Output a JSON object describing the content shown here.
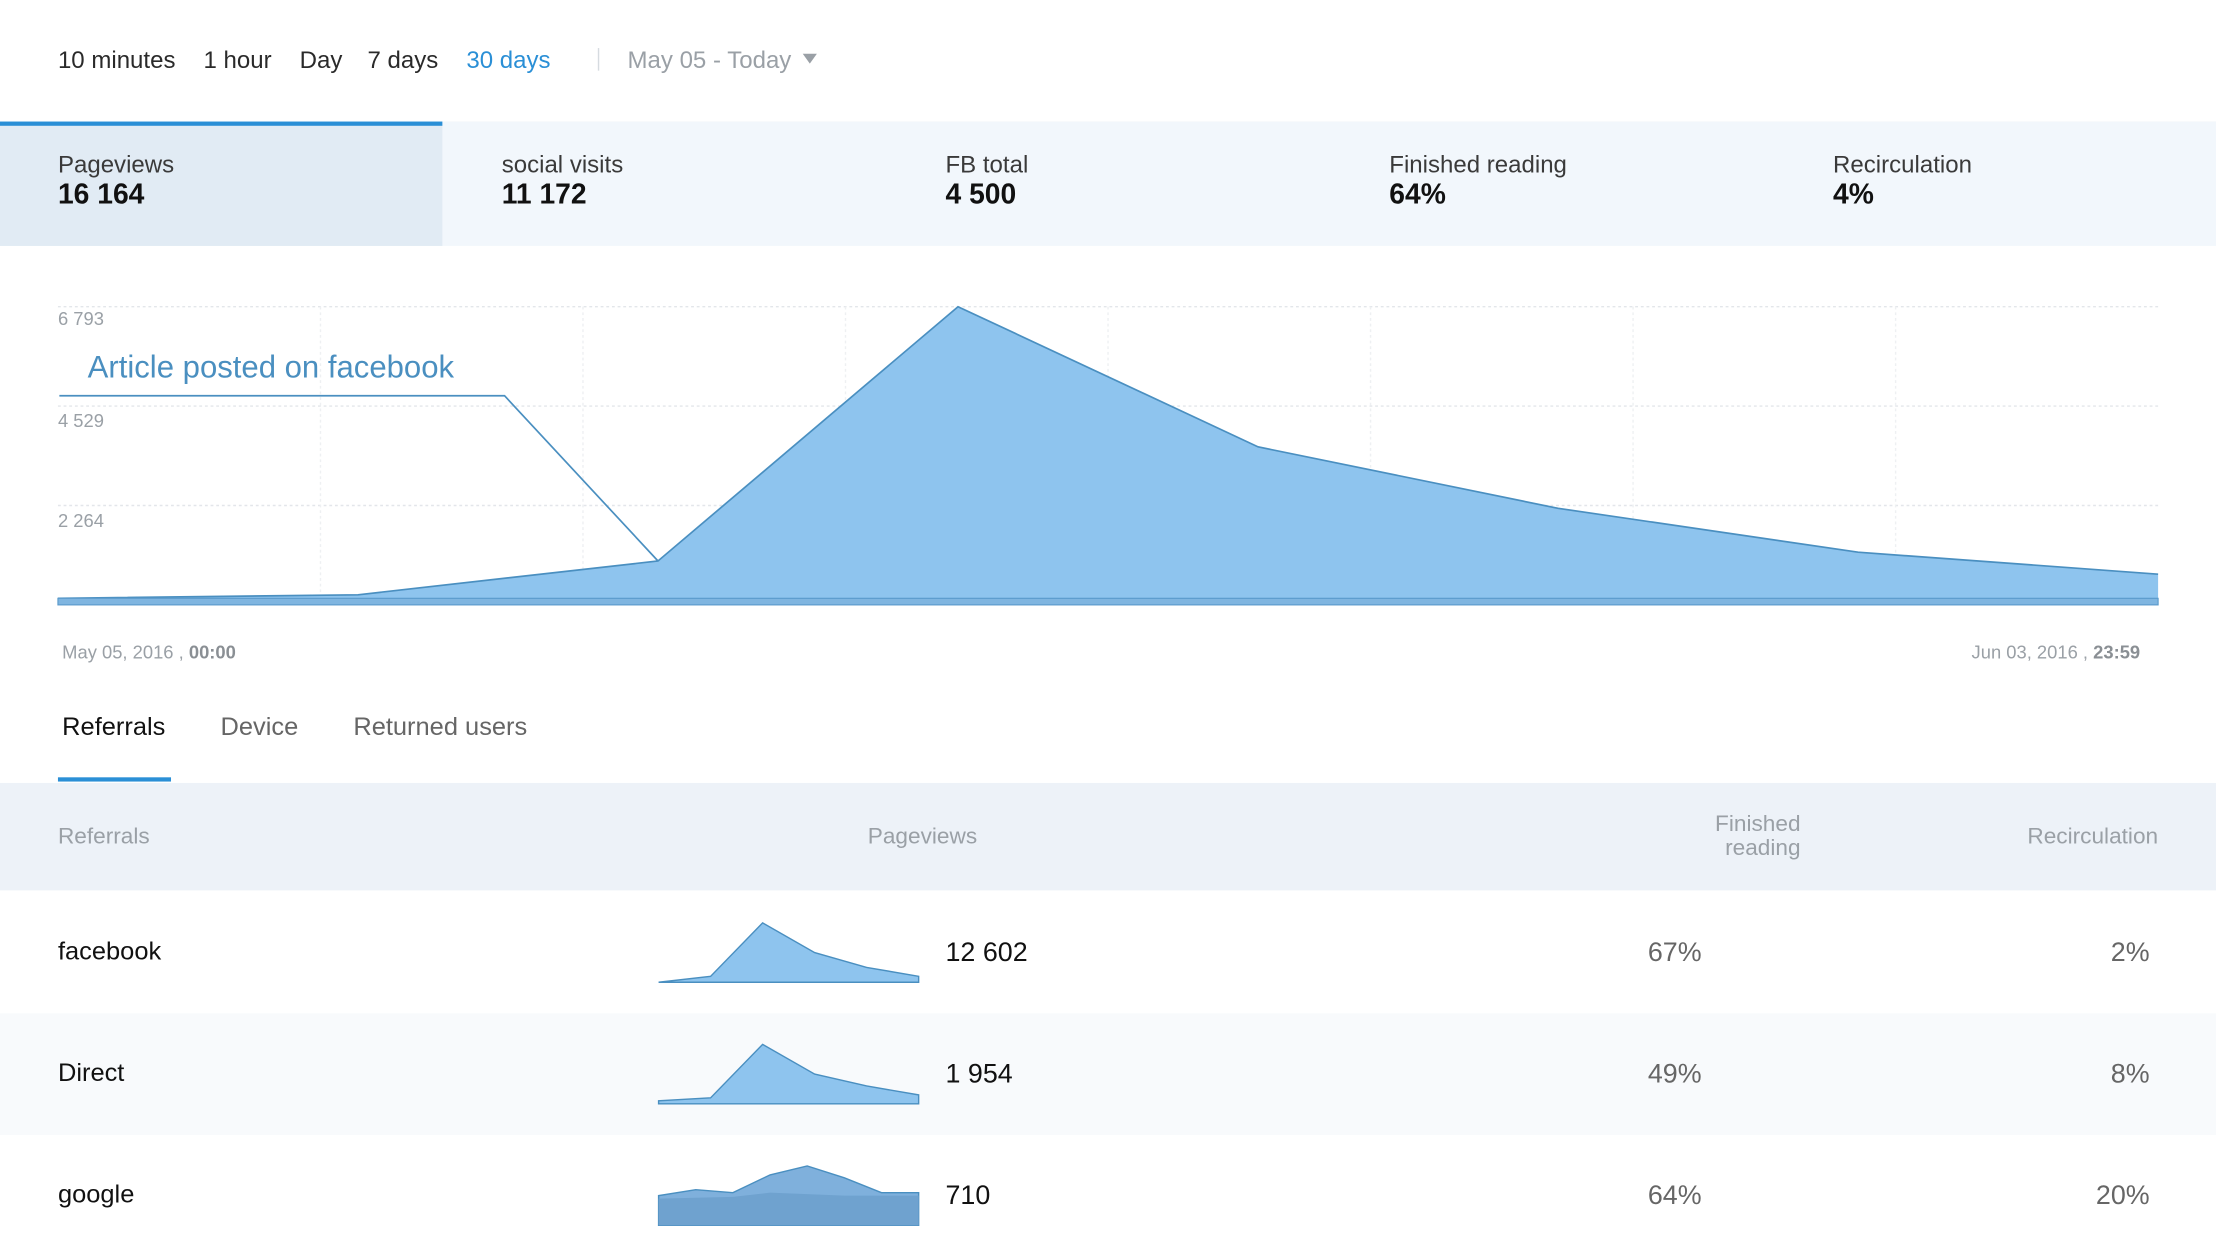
{
  "range": {
    "options": [
      "10 minutes",
      "1 hour",
      "Day",
      "7 days",
      "30 days"
    ],
    "active_index": 4,
    "date_range": "May 05 - Today"
  },
  "metrics": [
    {
      "label": "Pageviews",
      "value": "16 164"
    },
    {
      "label": "social visits",
      "value": "11 172"
    },
    {
      "label": "FB total",
      "value": "4 500"
    },
    {
      "label": "Finished reading",
      "value": "64%"
    },
    {
      "label": "Recirculation",
      "value": "4%"
    }
  ],
  "chart_data": {
    "type": "area",
    "y_ticks": [
      "6 793",
      "4 529",
      "2 264"
    ],
    "ylim": [
      0,
      6793
    ],
    "start_date": "May 05, 2016 ,",
    "start_time": "00:00",
    "end_date": "Jun 03, 2016 ,",
    "end_time": "23:59",
    "series": [
      {
        "values": [
          150,
          230,
          1000,
          6793,
          3600,
          2200,
          1200,
          700
        ]
      }
    ],
    "baseline": 150,
    "annotation": "Article posted on facebook",
    "color": "#8ec4ee",
    "line_color": "#4a8fc0"
  },
  "tabs": [
    "Referrals",
    "Device",
    "Returned users"
  ],
  "table": {
    "headers": {
      "name": "Referrals",
      "pageviews": "Pageviews",
      "finished_line1": "Finished",
      "finished_line2": "reading",
      "recirculation": "Recirculation"
    },
    "rows": [
      {
        "name": "facebook",
        "pageviews": "12 602",
        "finished": "67%",
        "recirculation": "2%",
        "spark": [
          0,
          0.1,
          1,
          0.5,
          0.25,
          0.1
        ]
      },
      {
        "name": "Direct",
        "pageviews": "1 954",
        "finished": "49%",
        "recirculation": "8%",
        "spark": [
          0.05,
          0.1,
          1,
          0.5,
          0.3,
          0.15
        ]
      },
      {
        "name": "google",
        "pageviews": "710",
        "finished": "64%",
        "recirculation": "20%",
        "spark": [
          0.5,
          0.6,
          0.55,
          0.85,
          1,
          0.8,
          0.55,
          0.55
        ]
      }
    ]
  }
}
